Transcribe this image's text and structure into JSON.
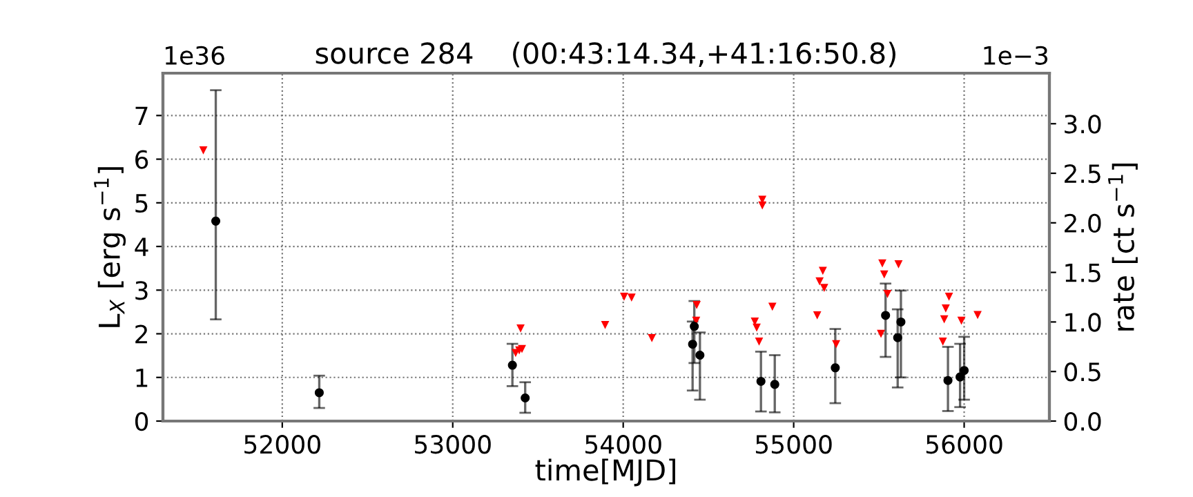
{
  "chart_data": {
    "type": "scatter",
    "title": "source 284    (00:43:14.34,+41:16:50.8)",
    "xlabel": "time[MJD]",
    "ylabel": "L$_{X}$ [erg s$^{−1}$]",
    "y2label": "rate [ct s$^{−1}$]",
    "annotations": [
      "1e36",
      "1e−3"
    ],
    "xlim": [
      51300,
      56500
    ],
    "xticks": [
      52000,
      53000,
      54000,
      55000,
      56000
    ],
    "ylim": [
      0,
      7.97
    ],
    "yticks": [
      0,
      1,
      2,
      3,
      4,
      5,
      6,
      7
    ],
    "y2lim": [
      0,
      3.51
    ],
    "y2ticks": [
      {
        "value": 0,
        "label": "0.0"
      },
      {
        "value": 0.5,
        "label": "0.5"
      },
      {
        "value": 1,
        "label": "1.0"
      },
      {
        "value": 1.5,
        "label": "1.5"
      },
      {
        "value": 2,
        "label": "2.0"
      },
      {
        "value": 2.5,
        "label": "2.5"
      },
      {
        "value": 3,
        "label": "3.0"
      }
    ],
    "grid": true,
    "legend": false,
    "series": [
      {
        "marker": "triangle",
        "color": "#ff0000",
        "x": [
          51537,
          53369,
          53390,
          53406,
          53398,
          53894,
          54005,
          54049,
          54168,
          54431,
          54428,
          54772,
          54783,
          54797,
          54816,
          54816,
          54875,
          55138,
          55152,
          55171,
          55179,
          55249,
          55512,
          55520,
          55531,
          55550,
          55615,
          55875,
          55883,
          55892,
          55911,
          55984,
          56079
        ],
        "values": [
          6.2,
          1.56,
          1.62,
          1.65,
          2.12,
          2.2,
          2.85,
          2.83,
          1.9,
          2.66,
          2.3,
          2.28,
          2.14,
          1.82,
          5.07,
          4.94,
          2.62,
          2.42,
          3.2,
          3.44,
          3.05,
          1.76,
          2.0,
          3.61,
          3.36,
          2.91,
          3.59,
          1.82,
          2.33,
          2.58,
          2.85,
          2.3,
          2.43
        ]
      },
      {
        "marker": "circle",
        "color": "#000000",
        "x": [
          51610,
          52217,
          53350,
          53425,
          54407,
          54417,
          54450,
          54808,
          54889,
          55244,
          55539,
          55610,
          55629,
          55905,
          55976,
          56000
        ],
        "values": [
          4.58,
          0.65,
          1.28,
          0.53,
          1.76,
          2.17,
          1.51,
          0.91,
          0.84,
          1.22,
          2.42,
          1.91,
          2.27,
          0.93,
          1.01,
          1.16
        ],
        "errors": [
          [
            2.33,
            7.58
          ],
          [
            0.3,
            1.04
          ],
          [
            0.8,
            1.77
          ],
          [
            0.19,
            0.89
          ],
          [
            0.7,
            2.28
          ],
          [
            1.33,
            2.75
          ],
          [
            0.49,
            2.03
          ],
          [
            0.22,
            1.59
          ],
          [
            0.2,
            1.51
          ],
          [
            0.41,
            2.11
          ],
          [
            1.47,
            3.15
          ],
          [
            0.77,
            2.56
          ],
          [
            1.0,
            2.99
          ],
          [
            0.23,
            1.7
          ],
          [
            0.32,
            1.77
          ],
          [
            0.49,
            1.93
          ]
        ]
      }
    ]
  }
}
